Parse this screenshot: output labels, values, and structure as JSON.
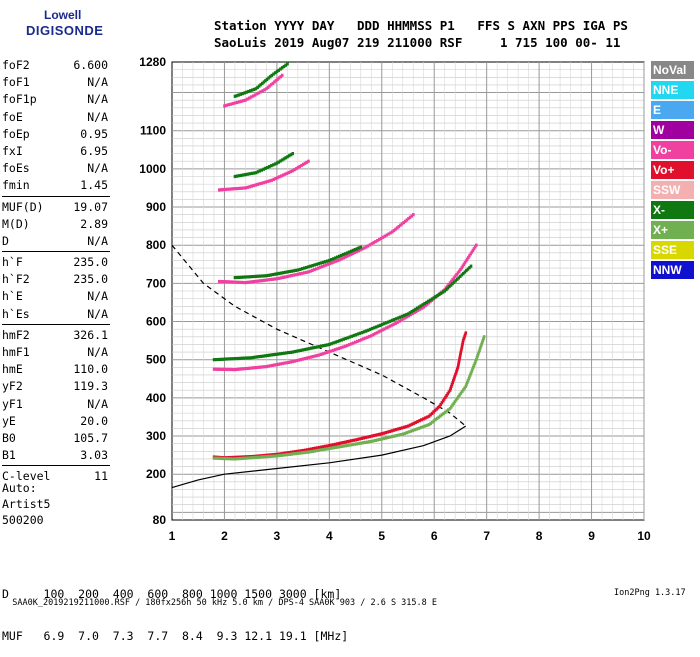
{
  "logo": {
    "line1": "Lowell",
    "line2": "DIGISONDE"
  },
  "header": {
    "line1": "Station YYYY DAY   DDD HHMMSS P1   FFS S AXN PPS IGA PS",
    "line2": "SaoLuis 2019 Aug07 219 211000 RSF     1 715 100 00- 11"
  },
  "params": [
    {
      "name": "foF2",
      "value": "6.600"
    },
    {
      "name": "foF1",
      "value": "N/A"
    },
    {
      "name": "foF1p",
      "value": "N/A"
    },
    {
      "name": "foE",
      "value": "N/A"
    },
    {
      "name": "foEp",
      "value": "0.95"
    },
    {
      "name": "fxI",
      "value": "6.95"
    },
    {
      "name": "foEs",
      "value": "N/A"
    },
    {
      "name": "fmin",
      "value": "1.45"
    },
    {
      "name": "MUF(D)",
      "value": "19.07",
      "sep": true
    },
    {
      "name": "M(D)",
      "value": "2.89"
    },
    {
      "name": "D",
      "value": "N/A"
    },
    {
      "name": "h`F",
      "value": "235.0",
      "sep": true
    },
    {
      "name": "h`F2",
      "value": "235.0"
    },
    {
      "name": "h`E",
      "value": "N/A"
    },
    {
      "name": "h`Es",
      "value": "N/A"
    },
    {
      "name": "hmF2",
      "value": "326.1",
      "sep": true
    },
    {
      "name": "hmF1",
      "value": "N/A"
    },
    {
      "name": "hmE",
      "value": "110.0"
    },
    {
      "name": "yF2",
      "value": "119.3"
    },
    {
      "name": "yF1",
      "value": "N/A"
    },
    {
      "name": "yE",
      "value": "20.0"
    },
    {
      "name": "B0",
      "value": "105.7"
    },
    {
      "name": "B1",
      "value": "3.03"
    },
    {
      "name": "C-level",
      "value": "11",
      "sep": true
    }
  ],
  "auto": {
    "l1": "Auto:",
    "l2": "Artist5",
    "l3": "500200"
  },
  "legend": [
    {
      "label": "NoVal",
      "color": "#888888"
    },
    {
      "label": "NNE",
      "color": "#22d8f0"
    },
    {
      "label": "E",
      "color": "#4aa8f0"
    },
    {
      "label": "W",
      "color": "#a000a0"
    },
    {
      "label": "Vo-",
      "color": "#f040a0"
    },
    {
      "label": "Vo+",
      "color": "#e0102c"
    },
    {
      "label": "SSW",
      "color": "#f4b0b0"
    },
    {
      "label": "X-",
      "color": "#107810"
    },
    {
      "label": "X+",
      "color": "#70b050"
    },
    {
      "label": "SSE",
      "color": "#d8d800"
    },
    {
      "label": "NNW",
      "color": "#1010d0"
    }
  ],
  "table": {
    "row1": "D     100  200  400  600  800 1000 1500 3000 [km]",
    "row2": "MUF   6.9  7.0  7.3  7.7  8.4  9.3 12.1 19.1 [MHz]"
  },
  "footer": {
    "left": "SAA0K_2019219211000.RSF / 180fx256h 50 kHz 5.0 km / DPS-4 SAA0K 903 / 2.6 S 315.8 E",
    "right": "Ion2Png 1.3.17"
  },
  "chart_data": {
    "type": "scatter",
    "title": "",
    "xlabel": "",
    "ylabel": "",
    "xlim": [
      1,
      10
    ],
    "ylim": [
      80,
      1280
    ],
    "xticks": [
      1,
      2,
      3,
      4,
      5,
      6,
      7,
      8,
      9,
      10
    ],
    "yticks": [
      80,
      200,
      300,
      400,
      500,
      600,
      700,
      800,
      900,
      1000,
      1100,
      1280
    ],
    "yticks_bold": [
      80,
      200,
      300,
      400,
      500,
      600,
      700,
      800,
      900,
      1000,
      1100,
      1280
    ],
    "series": [
      {
        "name": "Vo+",
        "color": "#e0102c",
        "points": [
          [
            1.8,
            245
          ],
          [
            2.0,
            243
          ],
          [
            2.5,
            246
          ],
          [
            3,
            252
          ],
          [
            3.5,
            262
          ],
          [
            4,
            275
          ],
          [
            4.5,
            290
          ],
          [
            5,
            306
          ],
          [
            5.5,
            326
          ],
          [
            5.9,
            352
          ],
          [
            6.1,
            378
          ],
          [
            6.3,
            420
          ],
          [
            6.45,
            480
          ],
          [
            6.55,
            550
          ],
          [
            6.6,
            570
          ]
        ]
      },
      {
        "name": "X+",
        "color": "#70b050",
        "points": [
          [
            1.8,
            242
          ],
          [
            2.2,
            240
          ],
          [
            3,
            248
          ],
          [
            3.6,
            258
          ],
          [
            4.2,
            272
          ],
          [
            4.8,
            286
          ],
          [
            5.4,
            305
          ],
          [
            5.9,
            330
          ],
          [
            6.3,
            372
          ],
          [
            6.6,
            430
          ],
          [
            6.8,
            500
          ],
          [
            6.95,
            560
          ]
        ]
      },
      {
        "name": "Vo-",
        "color": "#f040a0",
        "points": [
          [
            1.8,
            475
          ],
          [
            2.2,
            474
          ],
          [
            2.8,
            482
          ],
          [
            3.3,
            495
          ],
          [
            3.8,
            512
          ],
          [
            4.3,
            535
          ],
          [
            4.8,
            563
          ],
          [
            5.3,
            598
          ],
          [
            5.8,
            638
          ],
          [
            6.2,
            684
          ],
          [
            6.5,
            736
          ],
          [
            6.8,
            800
          ]
        ]
      },
      {
        "name": "X-",
        "color": "#107810",
        "points": [
          [
            1.8,
            500
          ],
          [
            2.5,
            505
          ],
          [
            3.3,
            520
          ],
          [
            4,
            540
          ],
          [
            4.7,
            575
          ],
          [
            5.5,
            620
          ],
          [
            6.2,
            680
          ],
          [
            6.7,
            745
          ]
        ]
      },
      {
        "name": "Vo-",
        "color": "#f040a0",
        "points": [
          [
            1.9,
            705
          ],
          [
            2.4,
            702
          ],
          [
            3,
            712
          ],
          [
            3.6,
            730
          ],
          [
            4.2,
            762
          ],
          [
            4.7,
            795
          ],
          [
            5.2,
            835
          ],
          [
            5.6,
            880
          ]
        ]
      },
      {
        "name": "X-",
        "color": "#107810",
        "points": [
          [
            2.2,
            715
          ],
          [
            2.8,
            720
          ],
          [
            3.4,
            735
          ],
          [
            4,
            760
          ],
          [
            4.6,
            795
          ]
        ]
      },
      {
        "name": "Vo-",
        "color": "#f040a0",
        "points": [
          [
            1.9,
            945
          ],
          [
            2.4,
            950
          ],
          [
            2.9,
            970
          ],
          [
            3.3,
            995
          ],
          [
            3.6,
            1020
          ]
        ]
      },
      {
        "name": "X-",
        "color": "#107810",
        "points": [
          [
            2.2,
            980
          ],
          [
            2.6,
            990
          ],
          [
            3.0,
            1015
          ],
          [
            3.3,
            1040
          ]
        ]
      },
      {
        "name": "Vo-",
        "color": "#f040a0",
        "points": [
          [
            2.0,
            1165
          ],
          [
            2.4,
            1180
          ],
          [
            2.8,
            1210
          ],
          [
            3.1,
            1245
          ]
        ]
      },
      {
        "name": "X-",
        "color": "#107810",
        "points": [
          [
            2.2,
            1190
          ],
          [
            2.6,
            1210
          ],
          [
            2.9,
            1245
          ],
          [
            3.2,
            1275
          ]
        ]
      }
    ],
    "profile_solid": [
      [
        1,
        165
      ],
      [
        1.5,
        185
      ],
      [
        2,
        200
      ],
      [
        3,
        215
      ],
      [
        4,
        230
      ],
      [
        5,
        250
      ],
      [
        5.8,
        275
      ],
      [
        6.3,
        300
      ],
      [
        6.6,
        326
      ]
    ],
    "profile_dashed": [
      [
        1,
        800
      ],
      [
        1.6,
        700
      ],
      [
        2.2,
        640
      ],
      [
        3,
        580
      ],
      [
        4,
        520
      ],
      [
        5,
        460
      ],
      [
        5.8,
        400
      ],
      [
        6.3,
        360
      ],
      [
        6.6,
        326
      ]
    ]
  }
}
